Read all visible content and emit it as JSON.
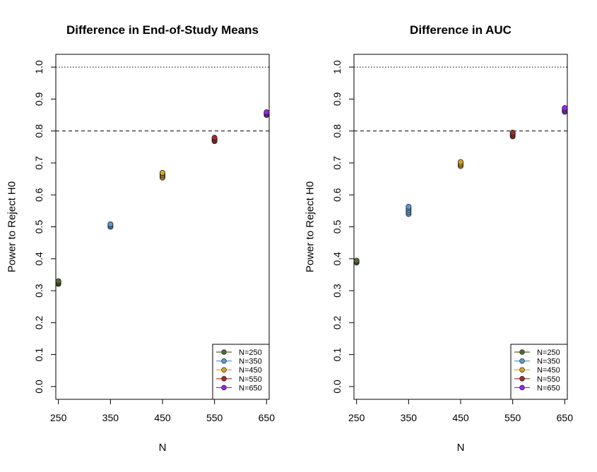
{
  "chart_data": [
    {
      "type": "scatter",
      "title": "Difference in End-of-Study Means",
      "xlabel": "N",
      "ylabel": "Power to Reject H0",
      "xlim": [
        245,
        655
      ],
      "ylim": [
        -0.04,
        1.04
      ],
      "xticks": [
        "250",
        "350",
        "450",
        "550",
        "650"
      ],
      "yticks": [
        "0.0",
        "0.1",
        "0.2",
        "0.3",
        "0.4",
        "0.5",
        "0.6",
        "0.7",
        "0.8",
        "0.9",
        "1.0"
      ],
      "reference_lines": [
        {
          "y": 1.0,
          "style": "dotted"
        },
        {
          "y": 0.8,
          "style": "dashed"
        }
      ],
      "legend_position": "bottom-right",
      "series": [
        {
          "name": "N=250",
          "color": "#556B2F",
          "x": 250,
          "values": [
            0.321,
            0.324,
            0.327,
            0.33
          ]
        },
        {
          "name": "N=350",
          "color": "#5B9BD5",
          "x": 350,
          "values": [
            0.5,
            0.504,
            0.508
          ]
        },
        {
          "name": "N=450",
          "color": "#DAA520",
          "x": 450,
          "values": [
            0.654,
            0.658,
            0.662,
            0.666,
            0.669
          ]
        },
        {
          "name": "N=550",
          "color": "#A52A2A",
          "x": 550,
          "values": [
            0.768,
            0.772,
            0.776,
            0.779
          ]
        },
        {
          "name": "N=650",
          "color": "#A020F0",
          "x": 650,
          "values": [
            0.85,
            0.853,
            0.856,
            0.859
          ]
        }
      ]
    },
    {
      "type": "scatter",
      "title": "Difference in AUC",
      "xlabel": "N",
      "ylabel": "Power to Reject H0",
      "xlim": [
        245,
        655
      ],
      "ylim": [
        -0.04,
        1.04
      ],
      "xticks": [
        "250",
        "350",
        "450",
        "550",
        "650"
      ],
      "yticks": [
        "0.0",
        "0.1",
        "0.2",
        "0.3",
        "0.4",
        "0.5",
        "0.6",
        "0.7",
        "0.8",
        "0.9",
        "1.0"
      ],
      "reference_lines": [
        {
          "y": 1.0,
          "style": "dotted"
        },
        {
          "y": 0.8,
          "style": "dashed"
        }
      ],
      "legend_position": "bottom-right",
      "series": [
        {
          "name": "N=250",
          "color": "#556B2F",
          "x": 250,
          "values": [
            0.388,
            0.391,
            0.394
          ]
        },
        {
          "name": "N=350",
          "color": "#5B9BD5",
          "x": 350,
          "values": [
            0.54,
            0.546,
            0.552,
            0.558,
            0.563
          ]
        },
        {
          "name": "N=450",
          "color": "#DAA520",
          "x": 450,
          "values": [
            0.69,
            0.694,
            0.698,
            0.703
          ]
        },
        {
          "name": "N=550",
          "color": "#A52A2A",
          "x": 550,
          "values": [
            0.783,
            0.787,
            0.791,
            0.795
          ]
        },
        {
          "name": "N=650",
          "color": "#A020F0",
          "x": 650,
          "values": [
            0.86,
            0.864,
            0.868,
            0.872
          ]
        }
      ]
    }
  ]
}
